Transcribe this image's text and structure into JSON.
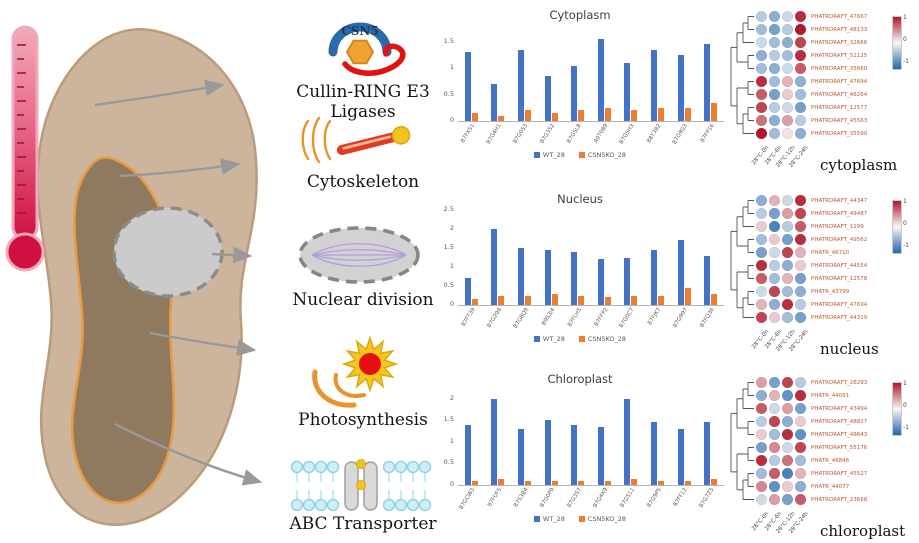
{
  "colors": {
    "bar_blue": "#4472c4",
    "bar_orange": "#ed7d31",
    "heat_pos": "#b2182b",
    "heat_mid": "#f7f7f7",
    "heat_neg": "#2166ac",
    "row_label": "#c2572a"
  },
  "left_panel": {
    "csn5_badge": "CSN5",
    "items": [
      {
        "label": "Cullin-RING E3 Ligases"
      },
      {
        "label": "Cytoskeleton"
      },
      {
        "label": "Nuclear division"
      },
      {
        "label": "Photosynthesis"
      },
      {
        "label": "ABC Transporter"
      }
    ]
  },
  "chart_data": [
    {
      "type": "bar",
      "title": "Cytoplasm",
      "categories": [
        "B7FXS1",
        "B7G4H1",
        "B7G0S3",
        "B7G3S2",
        "B7G5L8",
        "A0T0B9",
        "B7G5H3",
        "B8Y3B2",
        "B7G9G3",
        "B7FP16"
      ],
      "series": [
        {
          "name": "WT_28",
          "color": "#4472c4",
          "values": [
            1.3,
            0.7,
            1.35,
            0.85,
            1.05,
            1.55,
            1.1,
            1.35,
            1.25,
            1.45
          ]
        },
        {
          "name": "CSN5KO_28",
          "color": "#ed7d31",
          "values": [
            0.15,
            0.1,
            0.2,
            0.15,
            0.2,
            0.25,
            0.2,
            0.25,
            0.25,
            0.35
          ]
        }
      ],
      "ylim": [
        0,
        1.8
      ],
      "yticks": [
        0,
        0.5,
        1,
        1.5
      ],
      "legend_position": "bottom",
      "grid": false
    },
    {
      "type": "bar",
      "title": "Nucleus",
      "categories": [
        "B7FT39",
        "B7G294",
        "B7G8Q9",
        "B9S3I4",
        "B7FLH5",
        "B7FFP2",
        "B7G0C7",
        "B7FJK7",
        "B7G997",
        "B7FQ36"
      ],
      "series": [
        {
          "name": "WT_28",
          "color": "#4472c4",
          "values": [
            0.7,
            2.0,
            1.5,
            1.45,
            1.4,
            1.2,
            1.25,
            1.45,
            1.7,
            1.3
          ]
        },
        {
          "name": "CSN5KO_28",
          "color": "#ed7d31",
          "values": [
            0.15,
            0.25,
            0.25,
            0.3,
            0.25,
            0.2,
            0.25,
            0.25,
            0.45,
            0.3
          ]
        }
      ],
      "ylim": [
        0,
        2.5
      ],
      "yticks": [
        0,
        0.5,
        1,
        1.5,
        2,
        2.5
      ],
      "legend_position": "bottom",
      "grid": false
    },
    {
      "type": "bar",
      "title": "Chloroplast",
      "categories": [
        "B7GCW3",
        "B7FUF5",
        "B7S3B4",
        "B7G0P9",
        "B7G3S7",
        "B7G4K9",
        "B7G511",
        "B7G9P5",
        "B7FF12",
        "B7G7Z3"
      ],
      "series": [
        {
          "name": "WT_28",
          "color": "#4472c4",
          "values": [
            1.4,
            2.0,
            1.3,
            1.5,
            1.4,
            1.35,
            2.0,
            1.45,
            1.3,
            1.45
          ]
        },
        {
          "name": "CSN5KO_28",
          "color": "#ed7d31",
          "values": [
            0.1,
            0.15,
            0.1,
            0.1,
            0.1,
            0.1,
            0.15,
            0.1,
            0.1,
            0.15
          ]
        }
      ],
      "ylim": [
        0,
        2.2
      ],
      "yticks": [
        0,
        0.5,
        1,
        1.5,
        2
      ],
      "legend_position": "bottom",
      "grid": false
    },
    {
      "type": "heatmap",
      "title": "cytoplasm",
      "rows": [
        "PHATRDRAFT_47667",
        "PHATRDRAFT_48133",
        "PHATRDRAFT_32666",
        "PHATRDRAFT_51125",
        "PHATRDRAFT_35660",
        "PHATRDRAFT_47694",
        "PHATRDRAFT_48264",
        "PHATRDRAFT_12577",
        "PHATRDRAFT_45563",
        "PHATRDRAFT_35590"
      ],
      "columns": [
        "28°C-0h",
        "28°C-6h",
        "28°C-12h",
        "28°C-24h"
      ],
      "values": [
        [
          -0.3,
          -0.5,
          -0.2,
          0.9
        ],
        [
          -0.4,
          -0.6,
          -0.3,
          1.0
        ],
        [
          -0.2,
          -0.4,
          -0.5,
          0.8
        ],
        [
          -0.5,
          -0.3,
          -0.4,
          0.9
        ],
        [
          -0.4,
          -0.5,
          -0.2,
          0.7
        ],
        [
          0.9,
          -0.4,
          0.3,
          -0.5
        ],
        [
          0.7,
          -0.6,
          0.2,
          -0.4
        ],
        [
          0.8,
          -0.3,
          -0.2,
          -0.6
        ],
        [
          0.6,
          -0.5,
          0.4,
          -0.3
        ],
        [
          1.0,
          -0.4,
          0.1,
          -0.5
        ]
      ],
      "colorscale": {
        "min": -1,
        "max": 1,
        "min_color": "#2166ac",
        "mid_color": "#f7f7f7",
        "max_color": "#b2182b"
      },
      "legend_ticks": [
        "1",
        "0",
        "-1"
      ]
    },
    {
      "type": "heatmap",
      "title": "nucleus",
      "rows": [
        "PHATRDRAFT_44347",
        "PHATRDRAFT_49487",
        "PHATRDRAFT_1199",
        "PHATRDRAFT_49562",
        "PHATR_46710",
        "PHATRDRAFT_44554",
        "PHATRDRAFT_12578",
        "PHATR_43799",
        "PHATRDRAFT_47694",
        "PHATRDRAFT_44319"
      ],
      "columns": [
        "28°C-0h",
        "28°C-6h",
        "28°C-12h",
        "28°C-24h"
      ],
      "values": [
        [
          -0.5,
          0.3,
          -0.2,
          0.9
        ],
        [
          -0.3,
          -0.6,
          0.4,
          0.8
        ],
        [
          0.2,
          -0.8,
          -0.3,
          0.7
        ],
        [
          -0.4,
          0.2,
          -0.6,
          0.9
        ],
        [
          -0.6,
          -0.2,
          0.8,
          0.3
        ],
        [
          0.9,
          -0.3,
          -0.5,
          0.2
        ],
        [
          0.7,
          -0.4,
          0.3,
          -0.6
        ],
        [
          -0.2,
          0.8,
          -0.4,
          -0.5
        ],
        [
          0.3,
          -0.5,
          0.9,
          -0.3
        ],
        [
          0.8,
          0.2,
          -0.4,
          -0.6
        ]
      ],
      "colorscale": {
        "min": -1,
        "max": 1,
        "min_color": "#2166ac",
        "mid_color": "#f7f7f7",
        "max_color": "#b2182b"
      },
      "legend_ticks": [
        "1",
        "0",
        "-1"
      ]
    },
    {
      "type": "heatmap",
      "title": "chloroplast",
      "rows": [
        "PHATRDRAFT_28293",
        "PHATR_44091",
        "PHATRDRAFT_43494",
        "PHATRDRAFT_48827",
        "PHATRDRAFT_48643",
        "PHATRDRAFT_55176",
        "PHATR_46846",
        "PHATRDRAFT_45527",
        "PHATR_44077",
        "PHATRDRAFT_23668"
      ],
      "columns": [
        "28°C-0h",
        "28°C-6h",
        "28°C-12h",
        "28°C-24h"
      ],
      "values": [
        [
          0.4,
          -0.6,
          0.8,
          -0.3
        ],
        [
          -0.5,
          0.3,
          -0.7,
          0.9
        ],
        [
          0.7,
          -0.2,
          0.4,
          -0.6
        ],
        [
          -0.3,
          0.8,
          -0.5,
          0.2
        ],
        [
          0.2,
          -0.4,
          0.9,
          -0.7
        ],
        [
          -0.6,
          0.5,
          -0.2,
          0.8
        ],
        [
          0.9,
          -0.3,
          0.6,
          -0.4
        ],
        [
          -0.4,
          0.7,
          -0.8,
          0.3
        ],
        [
          0.5,
          -0.7,
          0.2,
          -0.5
        ],
        [
          -0.2,
          0.4,
          -0.6,
          0.7
        ]
      ],
      "colorscale": {
        "min": -1,
        "max": 1,
        "min_color": "#2166ac",
        "mid_color": "#f7f7f7",
        "max_color": "#b2182b"
      },
      "legend_ticks": [
        "1",
        "0",
        "-1"
      ]
    }
  ]
}
